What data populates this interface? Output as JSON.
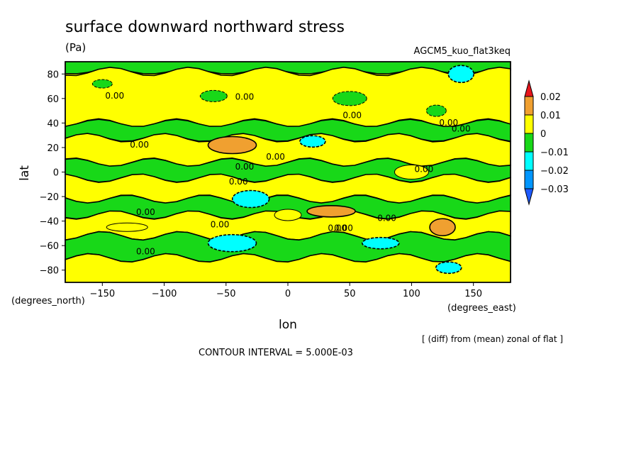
{
  "chart_data": {
    "type": "heatmap",
    "title": "surface downward northward stress",
    "units": "(Pa)",
    "run_label": "AGCM5_kuo_flat3keq",
    "xlabel": "lon",
    "ylabel": "lat",
    "x_units_label": "(degrees_east)",
    "y_units_label": "(degrees_north)",
    "xlim": [
      -180,
      180
    ],
    "ylim": [
      -90,
      90
    ],
    "x_ticks": [
      -150,
      -100,
      -50,
      0,
      50,
      100,
      150
    ],
    "y_ticks": [
      -80,
      -60,
      -40,
      -20,
      0,
      20,
      40,
      60,
      80
    ],
    "colorbar": {
      "levels": [
        -0.03,
        -0.02,
        -0.01,
        0,
        0.01,
        0.02
      ],
      "tick_labels": [
        "0.02",
        "0.01",
        "0",
        "−0.01",
        "−0.02",
        "−0.03"
      ],
      "colors": {
        "above_0.02": "#e8141c",
        "0.01_to_0.02": "#f0a030",
        "0_to_0.01": "#ffff00",
        "-0.01_to_0": "#18d818",
        "-0.02_to_-0.01": "#00ffff",
        "-0.03_to_-0.02": "#0096ff",
        "below_-0.03": "#1e5aff"
      }
    },
    "contour_labels": [
      "0.00",
      "0.00",
      "0.00",
      "0.00",
      "0.00",
      "0.00",
      "0.00",
      "0.00",
      "0.00",
      "0.00",
      "0.00",
      "0.00",
      "0.00",
      "0.00",
      "0.00",
      "0.00"
    ],
    "contour_interval_text": "CONTOUR INTERVAL = 5.000E-03",
    "subtitle_note": "[ (diff) from (mean) zonal of flat ]",
    "bands": [
      {
        "lat_from": 90,
        "lat_to": 82,
        "sign": "neg"
      },
      {
        "lat_from": 82,
        "lat_to": 40,
        "sign": "pos"
      },
      {
        "lat_from": 40,
        "lat_to": 28,
        "sign": "neg"
      },
      {
        "lat_from": 28,
        "lat_to": 8,
        "sign": "pos"
      },
      {
        "lat_from": 8,
        "lat_to": -5,
        "sign": "neg"
      },
      {
        "lat_from": -5,
        "lat_to": -22,
        "sign": "pos"
      },
      {
        "lat_from": -22,
        "lat_to": -35,
        "sign": "neg"
      },
      {
        "lat_from": -35,
        "lat_to": -52,
        "sign": "pos"
      },
      {
        "lat_from": -52,
        "lat_to": -70,
        "sign": "neg"
      },
      {
        "lat_from": -70,
        "lat_to": -90,
        "sign": "pos"
      }
    ],
    "patches": [
      {
        "lon": -150,
        "lat": 72,
        "sign": "neg"
      },
      {
        "lon": -60,
        "lat": 62,
        "sign": "neg"
      },
      {
        "lon": 50,
        "lat": 60,
        "sign": "neg"
      },
      {
        "lon": 140,
        "lat": 80,
        "sign": "strong_neg"
      },
      {
        "lon": 120,
        "lat": 50,
        "sign": "neg"
      },
      {
        "lon": -45,
        "lat": 22,
        "sign": "strong_pos"
      },
      {
        "lon": 20,
        "lat": 25,
        "sign": "strong_neg"
      },
      {
        "lon": -30,
        "lat": -22,
        "sign": "strong_neg"
      },
      {
        "lon": 35,
        "lat": -32,
        "sign": "strong_pos"
      },
      {
        "lon": 125,
        "lat": -45,
        "sign": "strong_pos"
      },
      {
        "lon": 75,
        "lat": -58,
        "sign": "strong_neg"
      },
      {
        "lon": -45,
        "lat": -58,
        "sign": "strong_neg"
      },
      {
        "lon": 130,
        "lat": -78,
        "sign": "strong_neg"
      },
      {
        "lon": 0,
        "lat": -35,
        "sign": "pos"
      },
      {
        "lon": 100,
        "lat": 0,
        "sign": "pos"
      },
      {
        "lon": -130,
        "lat": -45,
        "sign": "pos"
      }
    ]
  }
}
